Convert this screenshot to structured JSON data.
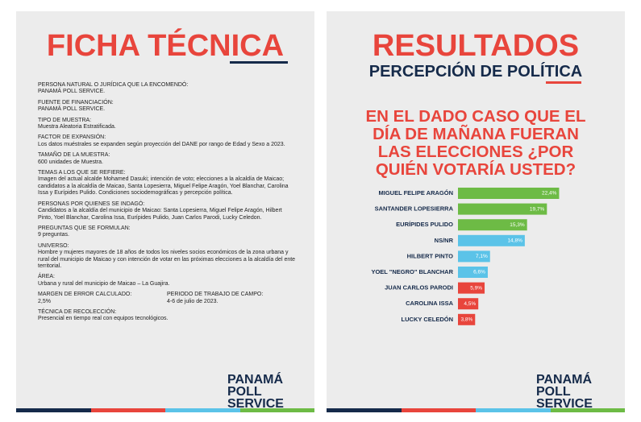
{
  "ficha": {
    "title": "FICHA TÉCNICA",
    "groups": [
      [
        {
          "label": "PERSONA NATURAL O JURÍDICA QUE LA ENCOMENDÓ:",
          "text": "PANAMÁ POLL SERVICE."
        }
      ],
      [
        {
          "label": "FUENTE DE FINANCIACIÓN:",
          "text": "PANAMÁ POLL SERVICE."
        }
      ],
      [
        {
          "label": "TIPO DE MUESTRA:",
          "text": "Muestra Aleatoria Estratificada."
        }
      ],
      [
        {
          "label": "FACTOR DE EXPANSIÓN:",
          "text": "Los datos muéstrales se expanden según proyección del DANE por rango de Edad y Sexo a 2023."
        }
      ],
      [
        {
          "label": "TAMAÑO DE LA MUESTRA:",
          "text": "600 unidades de Muestra."
        }
      ],
      [
        {
          "label": "TEMAS A LOS QUE SE REFIERE:",
          "text": "Imagen del actual alcalde Mohamed Dasuki; intención de voto; elecciones a la alcaldía de Maicao; candidatos a la alcaldía de Maicao, Santa Lopesierra, Miguel Felipe Aragón, Yoel Blanchar, Carolina Issa y Eurípides Pulido. Condiciones sociodemográficas y percepción política."
        }
      ],
      [
        {
          "label": "PERSONAS POR QUIENES SE INDAGÓ:",
          "text": "Candidatos a la alcaldía del municipio de Maicao: Santa Lopesierra, Miguel Felipe Aragón, Hilbert Pinto, Yoel Blanchar, Carolina Issa, Eurípides Pulido, Juan Carlos Parodi, Lucky Celedon."
        }
      ],
      [
        {
          "label": "PREGUNTAS QUE SE FORMULAN:",
          "text": "9 preguntas."
        }
      ],
      [
        {
          "label": "UNIVERSO:",
          "text": "Hombre y mujeres mayores de 18 años de todos los niveles socios económicos de la zona urbana y rural del municipio de Maicao y con intención de votar en las próximas elecciones a la alcaldía del ente territorial."
        }
      ],
      [
        {
          "label": "ÁREA:",
          "text": "Urbana y rural del municipio de Maicao – La Guajira."
        }
      ],
      [
        {
          "label": "MARGEN DE ERROR CALCULADO:",
          "text": "2,5%"
        },
        {
          "label": "PERIODO DE TRABAJO DE CAMPO:",
          "text": "4-6 de julio de 2023."
        }
      ],
      [
        {
          "label": "TÉCNICA DE RECOLECCIÓN:",
          "text": "Presencial en tiempo real con equipos tecnológicos."
        }
      ]
    ]
  },
  "logo": {
    "line1": "PANAMÁ",
    "line2": "POLL SERVICE"
  },
  "resultados": {
    "title": "RESULTADOS",
    "subtitle": "PERCEPCIÓN DE POLÍTICA",
    "question": "EN EL DADO CASO QUE EL DÍA DE MAÑANA FUERAN LAS ELECCIONES ¿POR QUIÉN VOTARÍA USTED?"
  },
  "chart_data": {
    "type": "bar",
    "orientation": "horizontal",
    "categories": [
      "MIGUEL FELIPE ARAGÓN",
      "SANTANDER LOPESIERRA",
      "EURÍPIDES PULIDO",
      "NS/NR",
      "HILBERT PINTO",
      "YOEL \"NEGRO\" BLANCHAR",
      "JUAN CARLOS PARODI",
      "CAROLINA ISSA",
      "LUCKY CELEDÓN"
    ],
    "values": [
      22.4,
      19.7,
      15.3,
      14.8,
      7.1,
      6.6,
      5.9,
      4.5,
      3.8
    ],
    "value_labels": [
      "22,4%",
      "19,7%",
      "15,3%",
      "14,8%",
      "7,1%",
      "6,6%",
      "5,9%",
      "4,5%",
      "3,8%"
    ],
    "colors": [
      "#6dbb45",
      "#6dbb45",
      "#6dbb45",
      "#5bc3e8",
      "#5bc3e8",
      "#5bc3e8",
      "#e8453c",
      "#e8453c",
      "#e8453c"
    ]
  }
}
